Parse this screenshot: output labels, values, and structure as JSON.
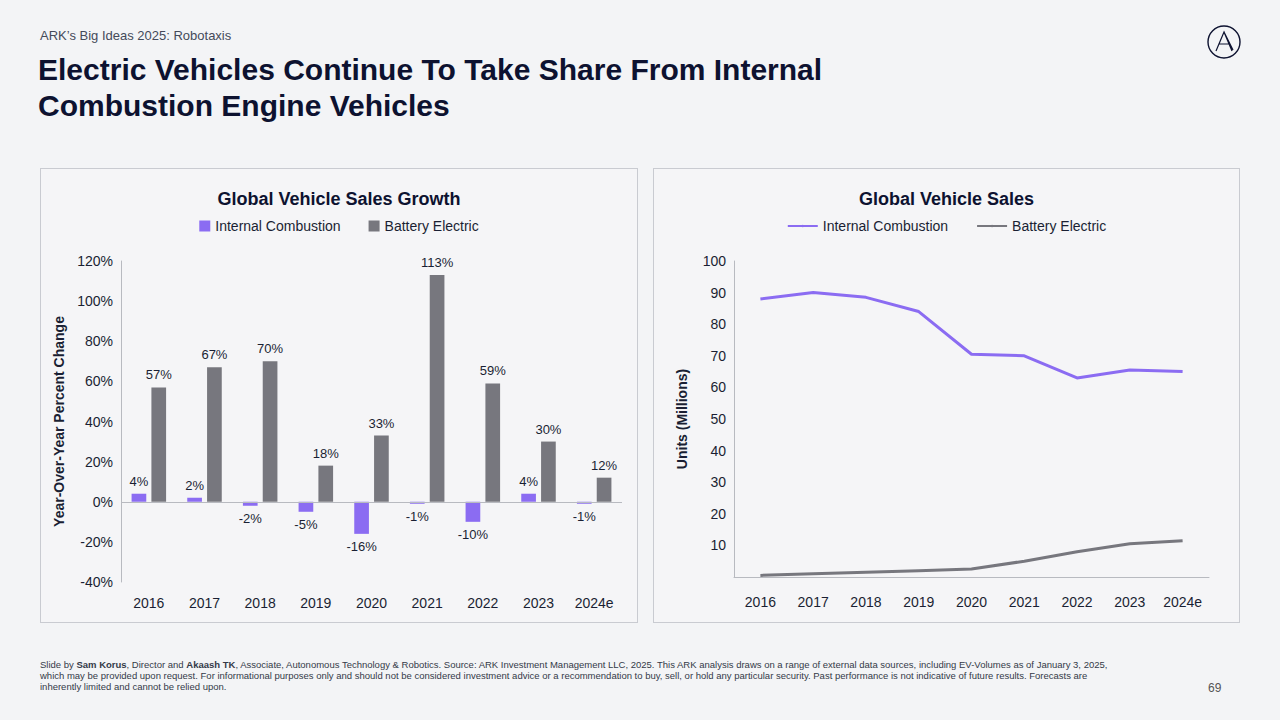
{
  "page": {
    "header": "ARK’s Big Ideas 2025: Robotaxis",
    "title": "Electric Vehicles Continue To Take Share From Internal Combustion Engine Vehicles",
    "footer": [
      {
        "text": "Slide by "
      },
      {
        "text": "Sam Korus",
        "bold": true
      },
      {
        "text": ", Director and "
      },
      {
        "text": "Akaash TK",
        "bold": true
      },
      {
        "text": ", Associate, Autonomous Technology & Robotics. Source: ARK Investment Management LLC, 2025. This ARK analysis draws on a range of external data sources, including EV-Volumes as of January 3, 2025, which may be provided upon request. For informational purposes only and should not be considered investment advice or a recommendation to buy, sell, or hold any particular security. Past performance is not indicative of future results. Forecasts are inherently limited and cannot be relied upon."
      }
    ],
    "page_number": "69"
  },
  "chart_data": [
    {
      "type": "bar",
      "title": "Global Vehicle Sales Growth",
      "ylabel": "Year-Over-Year Percent Change",
      "categories": [
        "2016",
        "2017",
        "2018",
        "2019",
        "2020",
        "2021",
        "2022",
        "2023",
        "2024e"
      ],
      "series": [
        {
          "name": "Internal Combustion",
          "color": "#8b6cf2",
          "values": [
            4,
            2,
            -2,
            -5,
            -16,
            -1,
            -10,
            4,
            -1
          ],
          "value_labels": [
            "4%",
            "2%",
            "-2%",
            "-5%",
            "-16%",
            "-1%",
            "-10%",
            "4%",
            "-1%"
          ]
        },
        {
          "name": "Battery Electric",
          "color": "#77777e",
          "values": [
            57,
            67,
            70,
            18,
            33,
            113,
            59,
            30,
            12
          ],
          "value_labels": [
            "57%",
            "67%",
            "70%",
            "18%",
            "33%",
            "113%",
            "59%",
            "30%",
            "12%"
          ]
        }
      ],
      "ylim": [
        -40,
        120
      ],
      "yticks": [
        {
          "value": -40,
          "label": "-40%"
        },
        {
          "value": -20,
          "label": "-20%"
        },
        {
          "value": 0,
          "label": "0%"
        },
        {
          "value": 20,
          "label": "20%"
        },
        {
          "value": 40,
          "label": "40%"
        },
        {
          "value": 60,
          "label": "60%"
        },
        {
          "value": 80,
          "label": "80%"
        },
        {
          "value": 100,
          "label": "100%"
        },
        {
          "value": 120,
          "label": "120%"
        }
      ],
      "grid": false,
      "legend": "top",
      "data_labels": true
    },
    {
      "type": "line",
      "title": "Global Vehicle Sales",
      "ylabel": "Units (Millions)",
      "categories": [
        "2016",
        "2017",
        "2018",
        "2019",
        "2020",
        "2021",
        "2022",
        "2023",
        "2024e"
      ],
      "series": [
        {
          "name": "Internal Combustion",
          "color": "#8b6cf2",
          "values": [
            88,
            90,
            88.5,
            84,
            70.5,
            70,
            63,
            65.5,
            65
          ]
        },
        {
          "name": "Battery Electric",
          "color": "#77777e",
          "values": [
            0.5,
            1,
            1.5,
            2,
            2.5,
            5,
            8,
            10.5,
            11.5
          ]
        }
      ],
      "ylim": [
        0,
        100
      ],
      "yticks": [
        10,
        20,
        30,
        40,
        50,
        60,
        70,
        80,
        90,
        100
      ],
      "grid": false,
      "legend": "top",
      "data_labels": false
    }
  ]
}
